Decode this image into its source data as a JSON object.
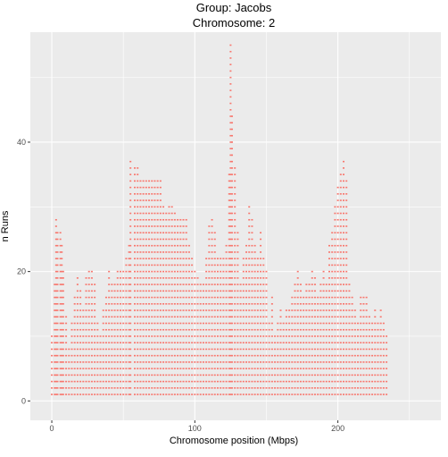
{
  "chart_data": {
    "type": "scatter",
    "title": "Group:  Jacobs",
    "subtitle": "Chromosome: 2",
    "xlabel": "Chromosome position (Mbps)",
    "ylabel": "n Runs",
    "xlim": [
      -15,
      272
    ],
    "ylim": [
      -3,
      57
    ],
    "xticks": [
      0,
      100,
      200
    ],
    "yticks": [
      0,
      20,
      40
    ],
    "grid": true,
    "legend": "none",
    "colors": {
      "panel": "#ebebeb",
      "grid": "#ffffff",
      "point": "#f8766d",
      "axis_text": "#4d4d4d"
    },
    "profile": [
      [
        0,
        10
      ],
      [
        2,
        18
      ],
      [
        3,
        28
      ],
      [
        4,
        26
      ],
      [
        6,
        26
      ],
      [
        7,
        24
      ],
      [
        8,
        20
      ],
      [
        10,
        13
      ],
      [
        12,
        8
      ],
      [
        14,
        12
      ],
      [
        16,
        16
      ],
      [
        18,
        19
      ],
      [
        20,
        17
      ],
      [
        22,
        14
      ],
      [
        24,
        19
      ],
      [
        26,
        20
      ],
      [
        28,
        20
      ],
      [
        30,
        18
      ],
      [
        32,
        12
      ],
      [
        34,
        10
      ],
      [
        36,
        14
      ],
      [
        38,
        16
      ],
      [
        40,
        20
      ],
      [
        42,
        18
      ],
      [
        44,
        18
      ],
      [
        46,
        20
      ],
      [
        48,
        20
      ],
      [
        50,
        20
      ],
      [
        52,
        22
      ],
      [
        54,
        24
      ],
      [
        55,
        37
      ],
      [
        58,
        36
      ],
      [
        60,
        36
      ],
      [
        62,
        34
      ],
      [
        64,
        34
      ],
      [
        66,
        34
      ],
      [
        68,
        34
      ],
      [
        70,
        34
      ],
      [
        72,
        34
      ],
      [
        74,
        34
      ],
      [
        76,
        34
      ],
      [
        78,
        30
      ],
      [
        80,
        29
      ],
      [
        82,
        30
      ],
      [
        84,
        30
      ],
      [
        86,
        29
      ],
      [
        88,
        28
      ],
      [
        90,
        28
      ],
      [
        92,
        28
      ],
      [
        94,
        28
      ],
      [
        96,
        24
      ],
      [
        98,
        22
      ],
      [
        100,
        20
      ],
      [
        102,
        19
      ],
      [
        104,
        18
      ],
      [
        106,
        18
      ],
      [
        108,
        22
      ],
      [
        110,
        27
      ],
      [
        112,
        28
      ],
      [
        114,
        26
      ],
      [
        116,
        22
      ],
      [
        118,
        22
      ],
      [
        120,
        22
      ],
      [
        122,
        24
      ],
      [
        124,
        35
      ],
      [
        125,
        55
      ],
      [
        126,
        44
      ],
      [
        128,
        36
      ],
      [
        130,
        26
      ],
      [
        132,
        18
      ],
      [
        134,
        22
      ],
      [
        136,
        24
      ],
      [
        138,
        30
      ],
      [
        140,
        28
      ],
      [
        142,
        24
      ],
      [
        144,
        22
      ],
      [
        146,
        26
      ],
      [
        148,
        22
      ],
      [
        150,
        20
      ],
      [
        152,
        12
      ],
      [
        154,
        16
      ],
      [
        156,
        10
      ],
      [
        158,
        12
      ],
      [
        160,
        14
      ],
      [
        162,
        12
      ],
      [
        164,
        14
      ],
      [
        166,
        14
      ],
      [
        168,
        16
      ],
      [
        170,
        18
      ],
      [
        172,
        20
      ],
      [
        174,
        18
      ],
      [
        176,
        16
      ],
      [
        178,
        18
      ],
      [
        180,
        18
      ],
      [
        182,
        20
      ],
      [
        184,
        19
      ],
      [
        186,
        16
      ],
      [
        188,
        18
      ],
      [
        190,
        20
      ],
      [
        192,
        18
      ],
      [
        194,
        24
      ],
      [
        196,
        26
      ],
      [
        198,
        30
      ],
      [
        200,
        33
      ],
      [
        202,
        35
      ],
      [
        204,
        37
      ],
      [
        206,
        34
      ],
      [
        208,
        18
      ],
      [
        210,
        16
      ],
      [
        212,
        14
      ],
      [
        214,
        12
      ],
      [
        216,
        16
      ],
      [
        218,
        16
      ],
      [
        220,
        16
      ],
      [
        222,
        13
      ],
      [
        224,
        12
      ],
      [
        226,
        14
      ],
      [
        228,
        12
      ],
      [
        230,
        14
      ],
      [
        232,
        12
      ],
      [
        234,
        10
      ]
    ]
  }
}
